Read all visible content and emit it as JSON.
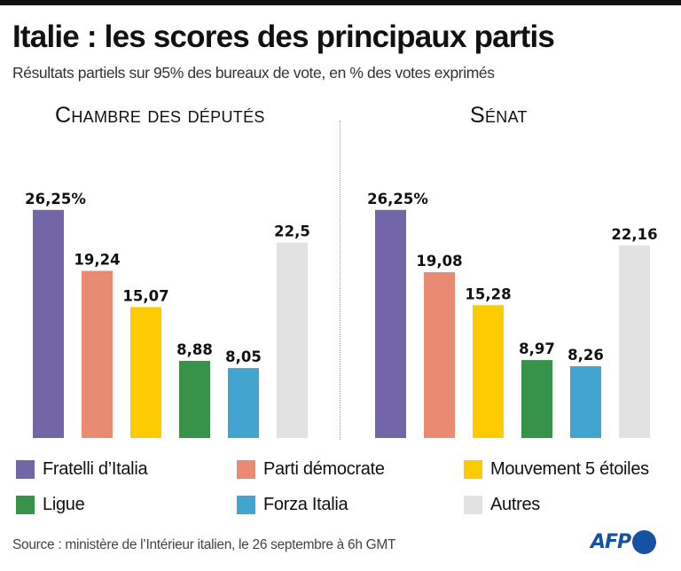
{
  "title": "Italie : les scores des principaux partis",
  "subtitle": "Résultats partiels sur 95% des bureaux de vote, en % des votes exprimés",
  "source": "Source : ministère de l’Intérieur italien, le 26 septembre à 6h GMT",
  "logo": {
    "text": "AFP",
    "color": "#1552a3"
  },
  "chart_data": [
    {
      "type": "bar",
      "title": "Chambre des députés",
      "xlabel": "",
      "ylabel": "% des votes exprimés",
      "ylim": [
        0,
        30
      ],
      "grid": false,
      "categories": [
        "Fratelli d’Italia",
        "Parti démocrate",
        "Mouvement 5 étoiles",
        "Ligue",
        "Forza Italia",
        "Autres"
      ],
      "values": [
        26.25,
        19.24,
        15.07,
        8.88,
        8.05,
        22.5
      ],
      "value_labels": [
        "26,25%",
        "19,24",
        "15,07",
        "8,88",
        "8,05",
        "22,5"
      ],
      "colors": [
        "#7265a8",
        "#e98b72",
        "#fecb00",
        "#37924a",
        "#42a4cf",
        "#e2e2e2"
      ]
    },
    {
      "type": "bar",
      "title": "Sénat",
      "xlabel": "",
      "ylabel": "% des votes exprimés",
      "ylim": [
        0,
        30
      ],
      "grid": false,
      "categories": [
        "Fratelli d’Italia",
        "Parti démocrate",
        "Mouvement 5 étoiles",
        "Ligue",
        "Forza Italia",
        "Autres"
      ],
      "values": [
        26.25,
        19.08,
        15.28,
        8.97,
        8.26,
        22.16
      ],
      "value_labels": [
        "26,25%",
        "19,08",
        "15,28",
        "8,97",
        "8,26",
        "22,16"
      ],
      "colors": [
        "#7265a8",
        "#e98b72",
        "#fecb00",
        "#37924a",
        "#42a4cf",
        "#e2e2e2"
      ]
    }
  ],
  "legend": {
    "placement": "bottom",
    "items": [
      {
        "label": "Fratelli d’Italia",
        "color": "#7265a8"
      },
      {
        "label": "Parti démocrate",
        "color": "#e98b72"
      },
      {
        "label": "Mouvement 5 étoiles",
        "color": "#fecb00"
      },
      {
        "label": "Ligue",
        "color": "#37924a"
      },
      {
        "label": "Forza Italia",
        "color": "#42a4cf"
      },
      {
        "label": "Autres",
        "color": "#e2e2e2"
      }
    ]
  }
}
